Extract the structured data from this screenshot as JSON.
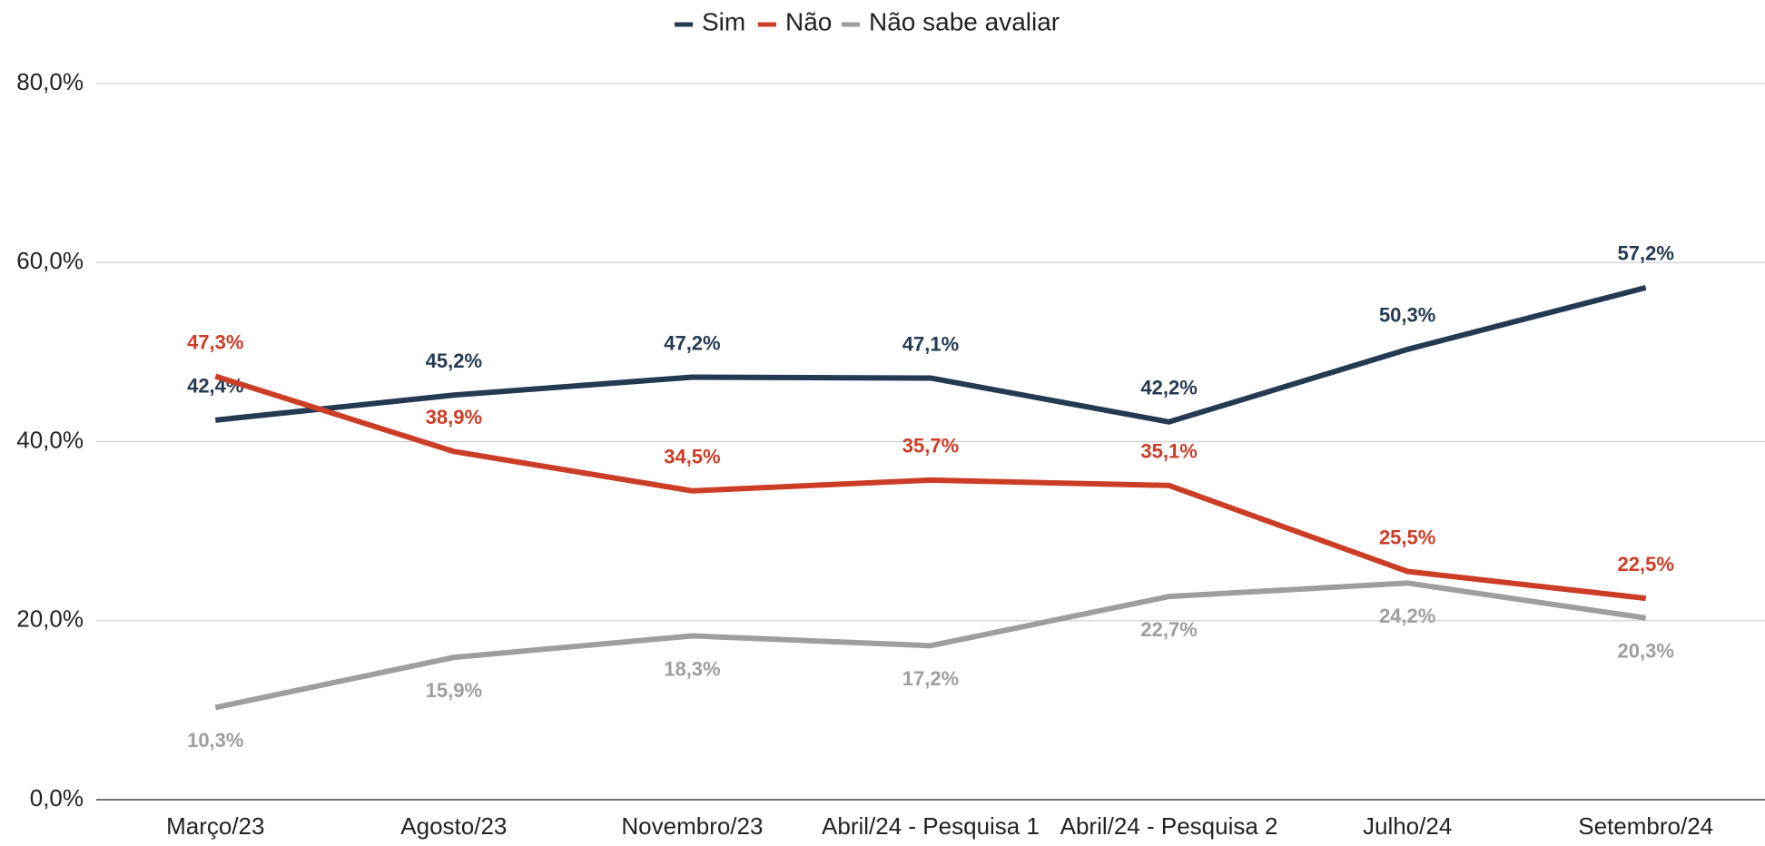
{
  "chart_data": {
    "type": "line",
    "categories": [
      "Março/23",
      "Agosto/23",
      "Novembro/23",
      "Abril/24 - Pesquisa 1",
      "Abril/24 - Pesquisa 2",
      "Julho/24",
      "Setembro/24"
    ],
    "series": [
      {
        "name": "Sim",
        "color": "#243a52",
        "values": [
          42.4,
          45.2,
          47.2,
          47.1,
          42.2,
          50.3,
          57.2
        ],
        "value_labels": [
          "42,4%",
          "45,2%",
          "47,2%",
          "47,1%",
          "42,2%",
          "50,3%",
          "57,2%"
        ]
      },
      {
        "name": "Não",
        "color": "#cc3d25",
        "values": [
          47.3,
          38.9,
          34.5,
          35.7,
          35.1,
          25.5,
          22.5
        ],
        "value_labels": [
          "47,3%",
          "38,9%",
          "34,5%",
          "35,7%",
          "35,1%",
          "25,5%",
          "22,5%"
        ]
      },
      {
        "name": "Não sabe avaliar",
        "color": "#9e9e9e",
        "values": [
          10.3,
          15.9,
          18.3,
          17.2,
          22.7,
          24.2,
          20.3
        ],
        "value_labels": [
          "10,3%",
          "15,9%",
          "18,3%",
          "17,2%",
          "22,7%",
          "24,2%",
          "20,3%"
        ]
      }
    ],
    "ylim": [
      0,
      80
    ],
    "yticks": [
      {
        "value": 0,
        "label": "0,0%"
      },
      {
        "value": 20,
        "label": "20,0%"
      },
      {
        "value": 40,
        "label": "40,0%"
      },
      {
        "value": 60,
        "label": "60,0%"
      },
      {
        "value": 80,
        "label": "80,0%"
      }
    ],
    "grid": true,
    "legend": "top"
  }
}
